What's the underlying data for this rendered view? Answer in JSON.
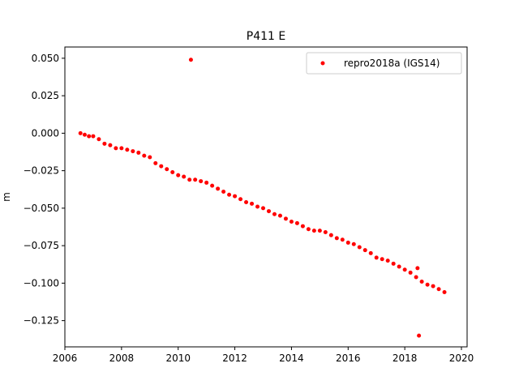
{
  "chart_data": {
    "type": "scatter",
    "title": "P411 E",
    "xlabel": "",
    "ylabel": "m",
    "xlim": [
      2006.0,
      2020.2
    ],
    "ylim": [
      -0.1425,
      0.0575
    ],
    "xticks": [
      2006,
      2008,
      2010,
      2012,
      2014,
      2016,
      2018,
      2020
    ],
    "xtick_labels": [
      "2006",
      "2008",
      "2010",
      "2012",
      "2014",
      "2016",
      "2018",
      "2020"
    ],
    "yticks": [
      0.05,
      0.025,
      0.0,
      -0.025,
      -0.05,
      -0.075,
      -0.1,
      -0.125
    ],
    "ytick_labels": [
      "0.050",
      "0.025",
      "0.000",
      "−0.025",
      "−0.050",
      "−0.075",
      "−0.100",
      "−0.125"
    ],
    "grid": false,
    "legend_position": "top-right",
    "series": [
      {
        "name": "repro2018a (IGS14)",
        "color": "#ff0000",
        "marker": "point",
        "x": [
          2006.55,
          2006.7,
          2006.85,
          2007.0,
          2007.2,
          2007.4,
          2007.6,
          2007.8,
          2008.0,
          2008.2,
          2008.4,
          2008.6,
          2008.8,
          2009.0,
          2009.2,
          2009.4,
          2009.6,
          2009.8,
          2010.0,
          2010.2,
          2010.4,
          2010.6,
          2010.8,
          2011.0,
          2011.2,
          2011.4,
          2011.6,
          2011.8,
          2012.0,
          2012.2,
          2012.4,
          2012.6,
          2012.8,
          2013.0,
          2013.2,
          2013.4,
          2013.6,
          2013.8,
          2014.0,
          2014.2,
          2014.4,
          2014.6,
          2014.8,
          2015.0,
          2015.2,
          2015.4,
          2015.6,
          2015.8,
          2016.0,
          2016.2,
          2016.4,
          2016.6,
          2016.8,
          2017.0,
          2017.2,
          2017.4,
          2017.6,
          2017.8,
          2018.0,
          2018.2,
          2018.4,
          2018.6,
          2018.8,
          2019.0,
          2019.2,
          2019.4,
          2010.45,
          2018.45,
          2018.5
        ],
        "y": [
          0.0,
          -0.001,
          -0.002,
          -0.002,
          -0.004,
          -0.007,
          -0.008,
          -0.01,
          -0.01,
          -0.011,
          -0.012,
          -0.013,
          -0.015,
          -0.016,
          -0.02,
          -0.022,
          -0.024,
          -0.026,
          -0.028,
          -0.029,
          -0.031,
          -0.031,
          -0.032,
          -0.033,
          -0.035,
          -0.037,
          -0.039,
          -0.041,
          -0.042,
          -0.044,
          -0.046,
          -0.047,
          -0.049,
          -0.05,
          -0.052,
          -0.054,
          -0.055,
          -0.057,
          -0.059,
          -0.06,
          -0.062,
          -0.064,
          -0.065,
          -0.065,
          -0.066,
          -0.068,
          -0.07,
          -0.071,
          -0.073,
          -0.074,
          -0.076,
          -0.078,
          -0.08,
          -0.083,
          -0.084,
          -0.085,
          -0.087,
          -0.089,
          -0.091,
          -0.093,
          -0.096,
          -0.099,
          -0.101,
          -0.102,
          -0.104,
          -0.106,
          0.049,
          -0.09,
          -0.135
        ]
      }
    ]
  }
}
